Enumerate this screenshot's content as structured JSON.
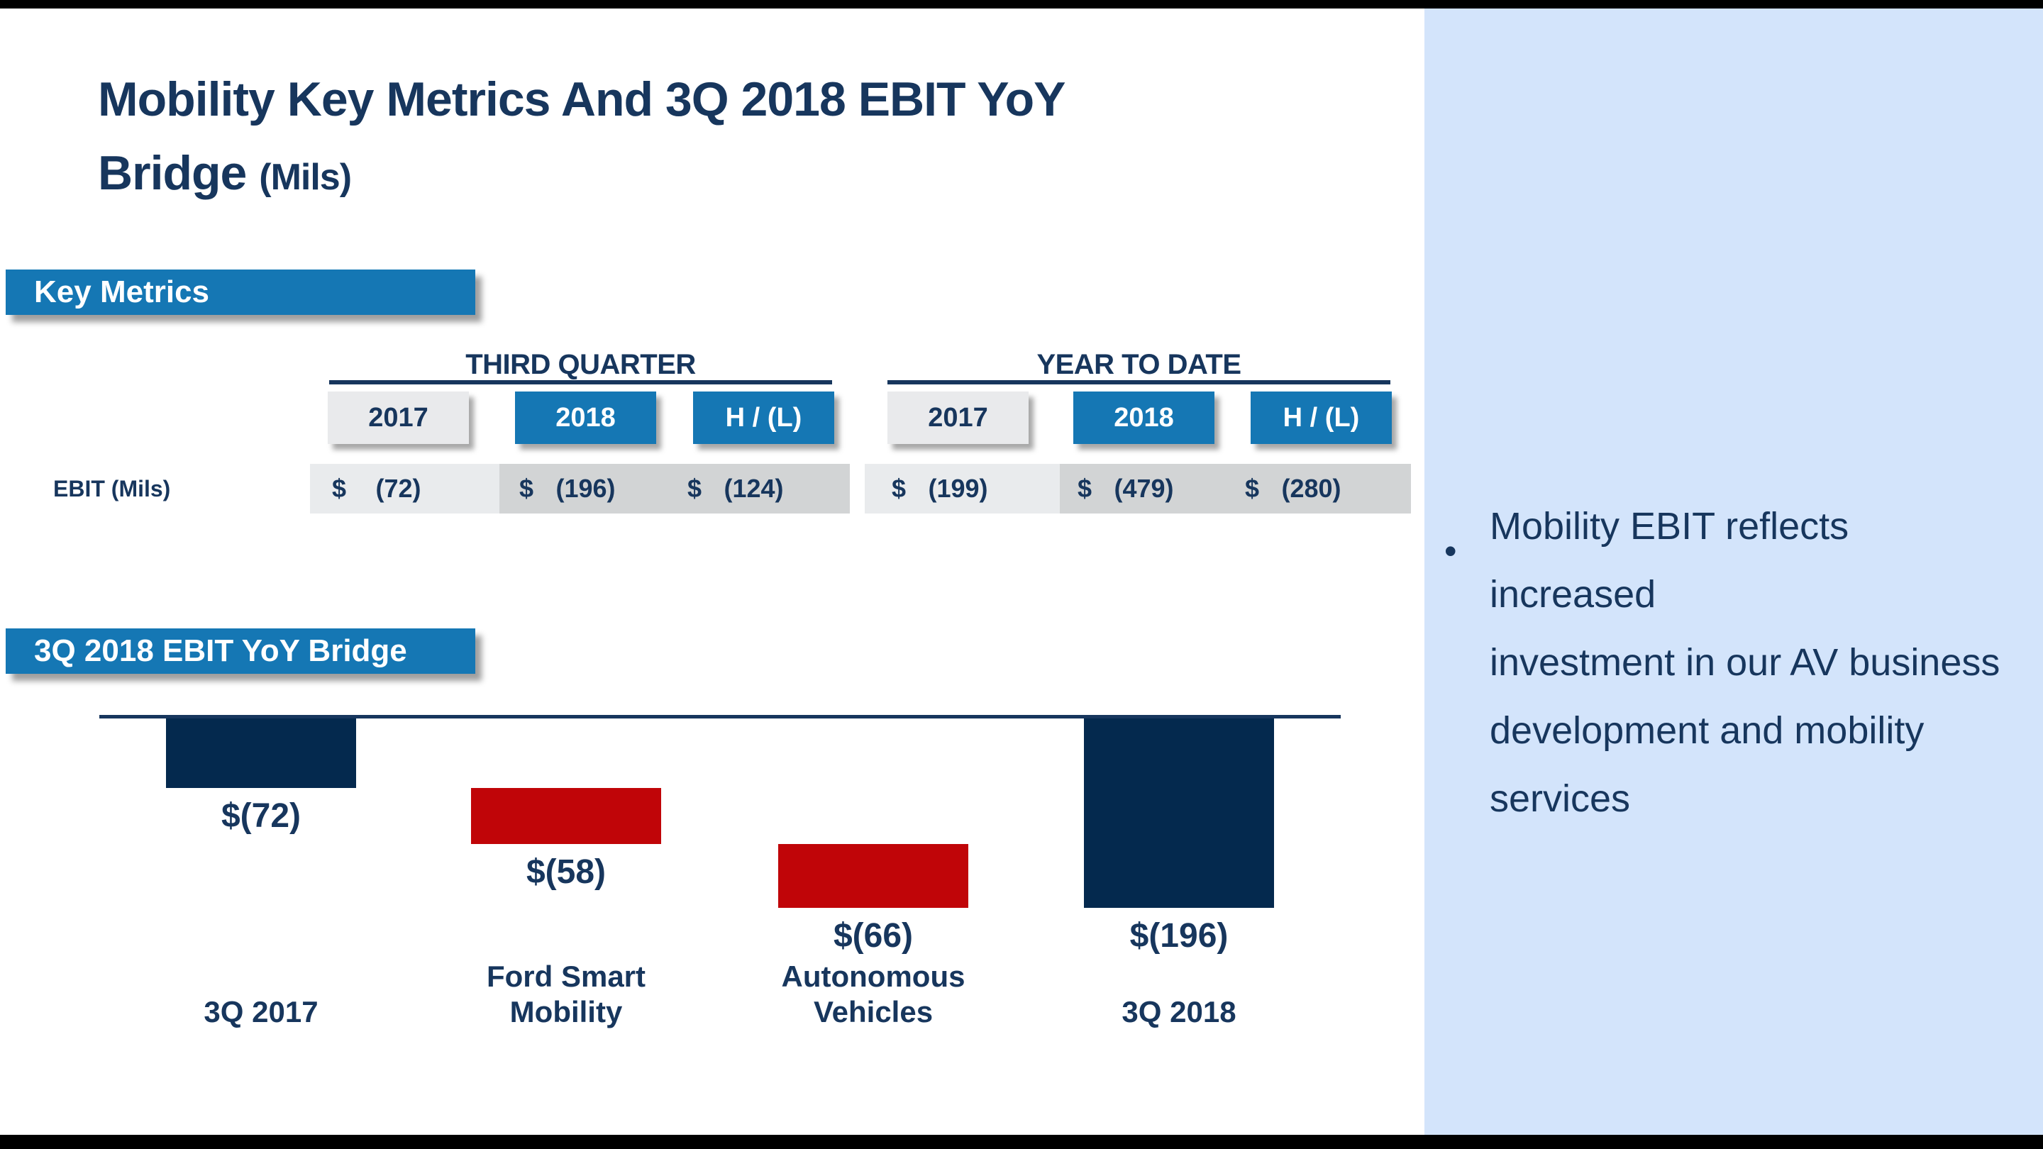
{
  "title": {
    "line1": "Mobility Key Metrics And 3Q 2018 EBIT YoY",
    "line2": "Bridge",
    "unit": "(Mils)"
  },
  "key_metrics": {
    "banner": "Key Metrics",
    "row_label": "EBIT (Mils)",
    "groups": [
      {
        "label": "THIRD QUARTER",
        "columns": [
          {
            "label": "2017",
            "style": "light"
          },
          {
            "label": "2018",
            "style": "blue"
          },
          {
            "label": "H / (L)",
            "style": "blue"
          }
        ],
        "cells": [
          {
            "currency": "$",
            "amount": "(72)"
          },
          {
            "currency": "$",
            "amount": "(196)"
          },
          {
            "currency": "$",
            "amount": "(124)"
          }
        ]
      },
      {
        "label": "YEAR TO DATE",
        "columns": [
          {
            "label": "2017",
            "style": "light"
          },
          {
            "label": "2018",
            "style": "blue"
          },
          {
            "label": "H / (L)",
            "style": "blue"
          }
        ],
        "cells": [
          {
            "currency": "$",
            "amount": "(199)"
          },
          {
            "currency": "$",
            "amount": "(479)"
          },
          {
            "currency": "$",
            "amount": "(280)"
          }
        ]
      }
    ]
  },
  "bridge": {
    "banner": "3Q 2018 EBIT YoY Bridge",
    "bars": [
      {
        "lines": [
          "3Q 2017"
        ],
        "value": -72,
        "value_label": "$(72)",
        "kind": "start",
        "color": "navy"
      },
      {
        "lines": [
          "Ford Smart",
          "Mobility"
        ],
        "value": -58,
        "value_label": "$(58)",
        "kind": "delta",
        "color": "red"
      },
      {
        "lines": [
          "Autonomous",
          "Vehicles"
        ],
        "value": -66,
        "value_label": "$(66)",
        "kind": "delta",
        "color": "red"
      },
      {
        "lines": [
          "3Q 2018"
        ],
        "value": -196,
        "value_label": "$(196)",
        "kind": "total",
        "color": "navy"
      }
    ]
  },
  "sidebar": {
    "bullet_glyph": "•",
    "bullet_lines": [
      "Mobility EBIT reflects increased",
      "investment in our AV business",
      "development and mobility",
      "services"
    ]
  },
  "colors": {
    "accent_blue": "#1577b4",
    "navy_text": "#17365d",
    "bar_navy": "#04294e",
    "bar_red": "#c00508",
    "panel_blue": "#d3e4fb",
    "header_box_gray": "#e9eaec",
    "strip_light": "#e9ebed",
    "strip_dark": "#d2d4d5"
  },
  "chart_data": [
    {
      "type": "bar",
      "subtype": "waterfall",
      "title": "3Q 2018 EBIT YoY Bridge",
      "categories": [
        "3Q 2017",
        "Ford Smart Mobility",
        "Autonomous Vehicles",
        "3Q 2018"
      ],
      "values": [
        -72,
        -58,
        -66,
        -196
      ],
      "bar_kinds": [
        "start",
        "delta",
        "delta",
        "total"
      ],
      "data_labels": [
        "$(72)",
        "$(58)",
        "$(66)",
        "$(196)"
      ],
      "bar_colors": [
        "#04294e",
        "#c00508",
        "#c00508",
        "#04294e"
      ],
      "units": "$ Mils",
      "baseline": 0,
      "grid": false,
      "axes_hidden": true,
      "legend": "none"
    },
    {
      "type": "table",
      "title": "Key Metrics",
      "row_label": "EBIT (Mils)",
      "column_groups": [
        "THIRD QUARTER",
        "YEAR TO DATE"
      ],
      "columns": [
        "2017",
        "2018",
        "H / (L)",
        "2017",
        "2018",
        "H / (L)"
      ],
      "values": [
        -72,
        -196,
        -124,
        -199,
        -479,
        -280
      ]
    }
  ]
}
